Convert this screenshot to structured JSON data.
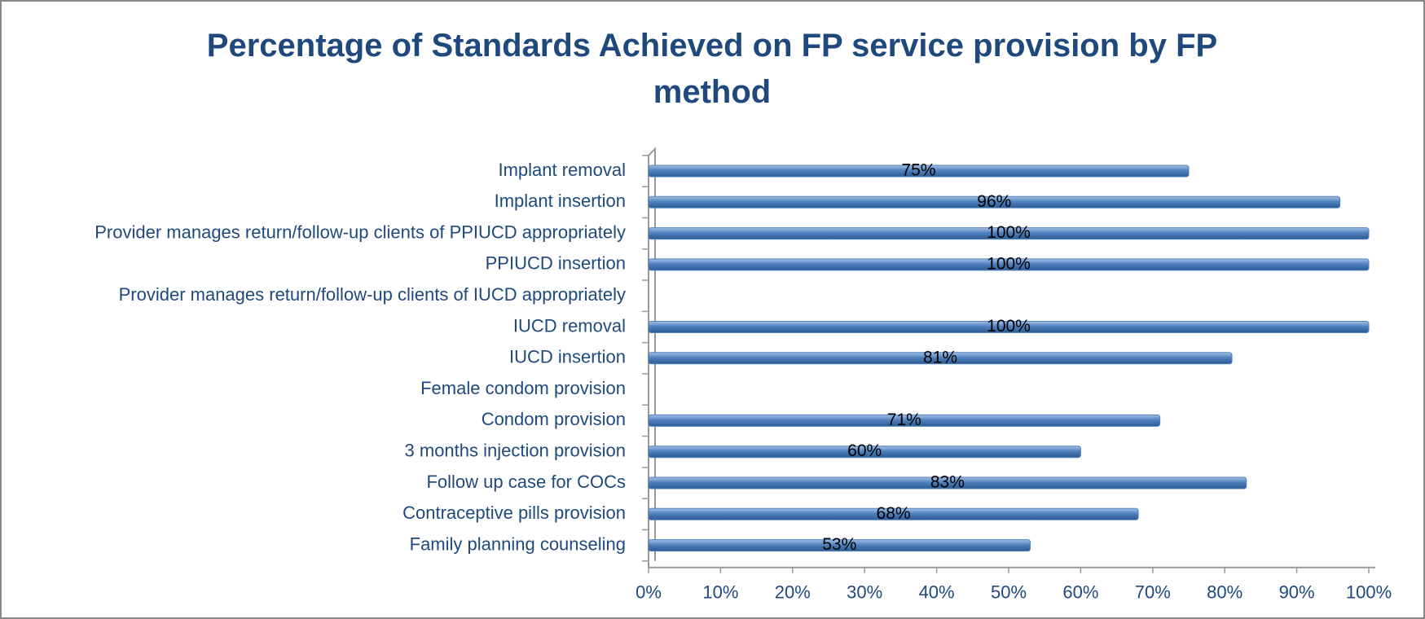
{
  "chart_data": {
    "type": "bar",
    "orientation": "horizontal",
    "title": "Percentage of Standards Achieved on FP service provision by FP method",
    "categories": [
      "Implant removal",
      "Implant insertion",
      "Provider manages return/follow-up clients of PPIUCD appropriately",
      "PPIUCD insertion",
      "Provider manages return/follow-up clients of IUCD appropriately",
      "IUCD removal",
      "IUCD insertion",
      "Female condom provision",
      "Condom provision",
      "3 months injection provision",
      "Follow up case for COCs",
      "Contraceptive pills provision",
      "Family planning counseling"
    ],
    "values": [
      75,
      96,
      100,
      100,
      null,
      100,
      81,
      null,
      71,
      60,
      83,
      68,
      53
    ],
    "value_labels": [
      "75%",
      "96%",
      "100%",
      "100%",
      null,
      "100%",
      "81%",
      null,
      "71%",
      "60%",
      "83%",
      "68%",
      "53%"
    ],
    "color": "#4f81bd",
    "xlim": [
      0,
      100
    ],
    "xticks": [
      {
        "value": 0,
        "label": "0%"
      },
      {
        "value": 10,
        "label": "10%"
      },
      {
        "value": 20,
        "label": "20%"
      },
      {
        "value": 30,
        "label": "30%"
      },
      {
        "value": 40,
        "label": "40%"
      },
      {
        "value": 50,
        "label": "50%"
      },
      {
        "value": 60,
        "label": "60%"
      },
      {
        "value": 70,
        "label": "70%"
      },
      {
        "value": 80,
        "label": "80%"
      },
      {
        "value": 90,
        "label": "90%"
      },
      {
        "value": 100,
        "label": "100%"
      }
    ]
  }
}
